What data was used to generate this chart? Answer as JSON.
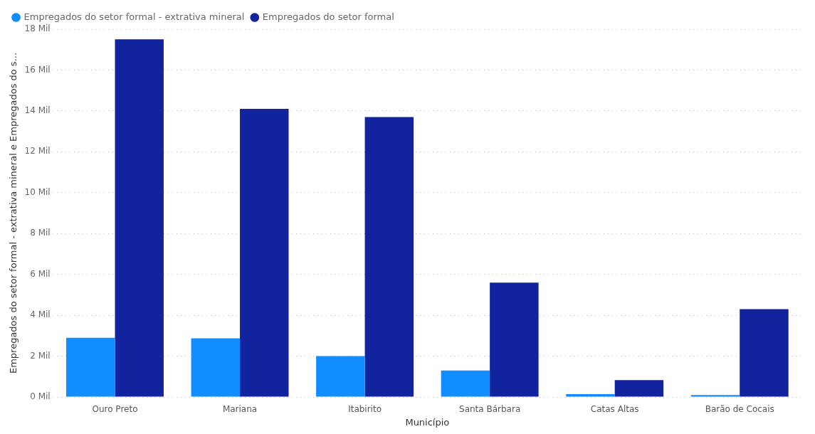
{
  "chart_data": {
    "type": "bar",
    "xlabel": "Município",
    "ylabel": "Empregados do setor formal - extrativa mineral e Empregados do s...",
    "categories": [
      "Ouro Preto",
      "Mariana",
      "Itabirito",
      "Santa Bárbara",
      "Catas Altas",
      "Barão de Cocais"
    ],
    "series": [
      {
        "name": "Empregados do setor formal - extrativa mineral",
        "color": "#118dff",
        "values": [
          2.9,
          2.87,
          2.0,
          1.3,
          0.14,
          0.1
        ]
      },
      {
        "name": "Empregados do setor formal",
        "color": "#12239e",
        "values": [
          17.5,
          14.1,
          13.7,
          5.6,
          0.83,
          4.3
        ]
      }
    ],
    "ylim": [
      0,
      18
    ],
    "yticks": [
      {
        "value": 0,
        "label": "0 Mil"
      },
      {
        "value": 2,
        "label": "2 Mil"
      },
      {
        "value": 4,
        "label": "4 Mil"
      },
      {
        "value": 6,
        "label": "6 Mil"
      },
      {
        "value": 8,
        "label": "8 Mil"
      },
      {
        "value": 10,
        "label": "10 Mil"
      },
      {
        "value": 12,
        "label": "12 Mil"
      },
      {
        "value": 14,
        "label": "14 Mil"
      },
      {
        "value": 16,
        "label": "16 Mil"
      },
      {
        "value": 18,
        "label": "18 Mil"
      }
    ],
    "grid": "y",
    "legend": "top left"
  }
}
